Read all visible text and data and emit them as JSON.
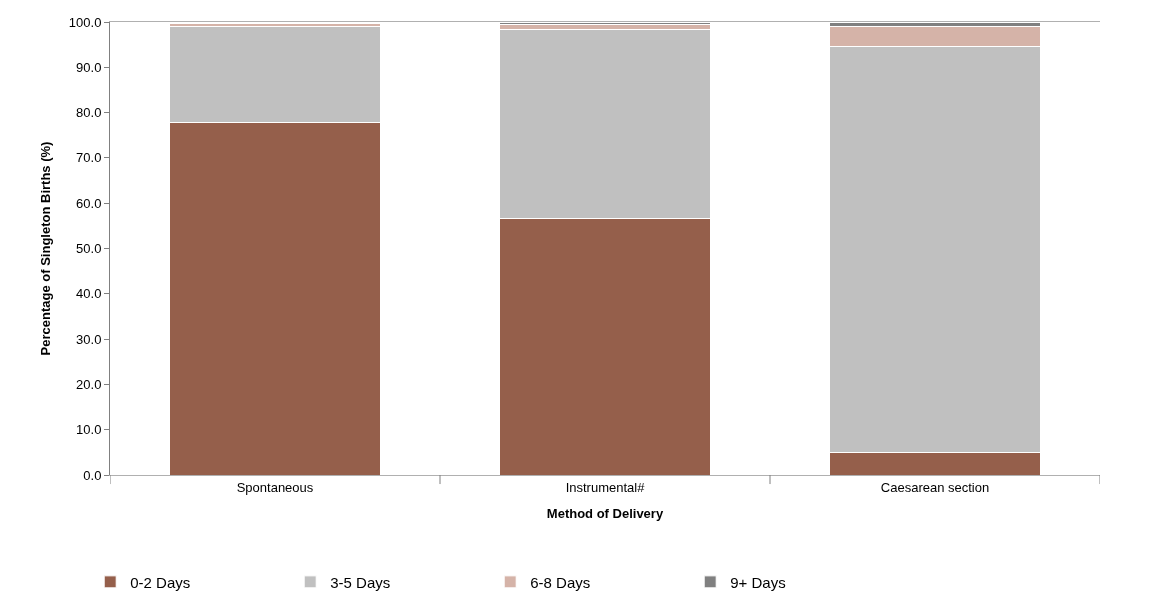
{
  "chart_data": {
    "type": "bar",
    "stacked": true,
    "xlabel": "Method of Delivery",
    "ylabel": "Percentage of Singleton Births (%)",
    "categories": [
      "Spontaneous",
      "Instrumental#",
      "Caesarean section"
    ],
    "series": [
      {
        "name": "0-2 Days",
        "color": "#955f4b",
        "values": [
          77.8,
          56.7,
          4.9
        ]
      },
      {
        "name": "3-5 Days",
        "color": "#c0c0c0",
        "values": [
          21.1,
          41.6,
          89.7
        ]
      },
      {
        "name": "6-8 Days",
        "color": "#d5b3a8",
        "values": [
          0.8,
          1.2,
          4.4
        ]
      },
      {
        "name": "9+ Days",
        "color": "#808080",
        "values": [
          0.3,
          0.4,
          1.0
        ]
      }
    ],
    "ylim": [
      0,
      100
    ],
    "yticks": [
      {
        "value": 0,
        "label": "0.0"
      },
      {
        "value": 10,
        "label": "10.0"
      },
      {
        "value": 20,
        "label": "20.0"
      },
      {
        "value": 30,
        "label": "30.0"
      },
      {
        "value": 40,
        "label": "40.0"
      },
      {
        "value": 50,
        "label": "50.0"
      },
      {
        "value": 60,
        "label": "60.0"
      },
      {
        "value": 70,
        "label": "70.0"
      },
      {
        "value": 80,
        "label": "80.0"
      },
      {
        "value": 90,
        "label": "90.0"
      },
      {
        "value": 100,
        "label": "100.0"
      }
    ],
    "legend": "bottom left"
  }
}
